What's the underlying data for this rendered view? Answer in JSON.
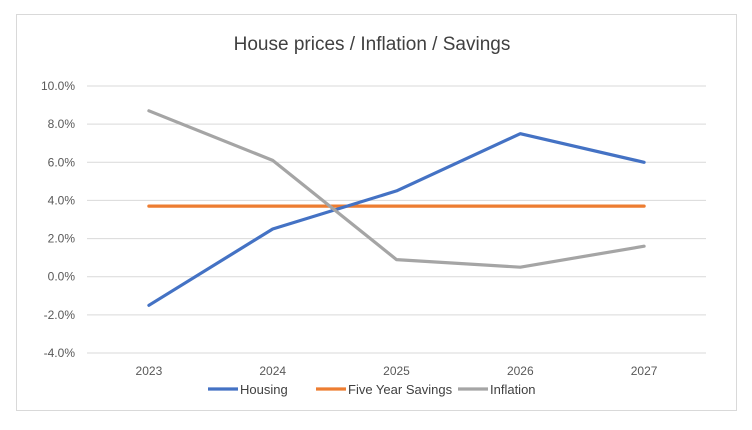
{
  "chart_data": {
    "type": "line",
    "title": "House prices / Inflation / Savings",
    "xlabel": "",
    "ylabel": "",
    "categories": [
      "2023",
      "2024",
      "2025",
      "2026",
      "2027"
    ],
    "y_tick_labels": [
      "10.0%",
      "8.0%",
      "6.0%",
      "4.0%",
      "2.0%",
      "0.0%",
      "-2.0%",
      "-4.0%"
    ],
    "ylim": [
      -4.0,
      10.0
    ],
    "grid": true,
    "legend_position": "bottom",
    "series": [
      {
        "name": "Housing",
        "color": "#4472C4",
        "values": [
          -1.5,
          2.5,
          4.5,
          7.5,
          6.0
        ]
      },
      {
        "name": "Five Year Savings",
        "color": "#ED7D31",
        "values": [
          3.7,
          3.7,
          3.7,
          3.7,
          3.7
        ]
      },
      {
        "name": "Inflation",
        "color": "#A5A5A5",
        "values": [
          8.7,
          6.1,
          0.9,
          0.5,
          1.6
        ]
      }
    ]
  }
}
